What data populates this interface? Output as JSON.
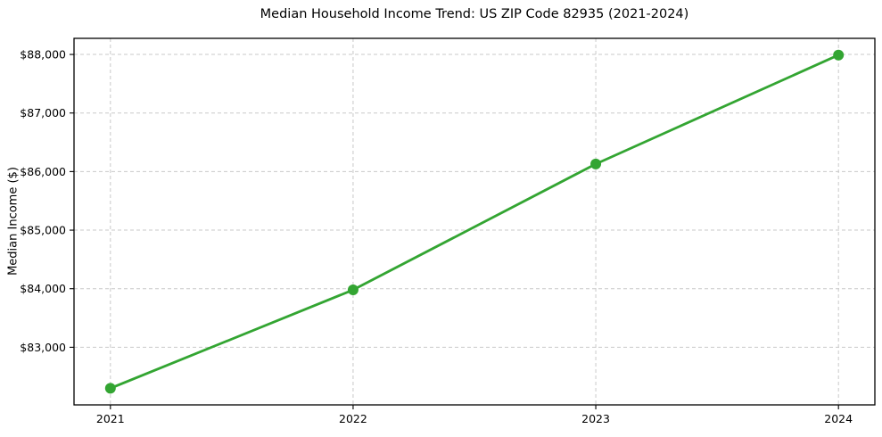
{
  "chart_data": {
    "type": "line",
    "title": "Median Household Income Trend: US ZIP Code 82935 (2021-2024)",
    "xlabel": "",
    "ylabel": "Median Income ($)",
    "x": [
      2021,
      2022,
      2023,
      2024
    ],
    "x_tick_labels": [
      "2021",
      "2022",
      "2023",
      "2024"
    ],
    "y_ticks": [
      83000,
      84000,
      85000,
      86000,
      87000,
      88000
    ],
    "y_tick_labels": [
      "$83,000",
      "$84,000",
      "$85,000",
      "$86,000",
      "$87,000",
      "$88,000"
    ],
    "series": [
      {
        "name": "Median Household Income",
        "values": [
          82300,
          83980,
          86130,
          87990
        ]
      }
    ],
    "xlim": [
      2020.85,
      2024.15
    ],
    "ylim": [
      82016,
      88275
    ],
    "grid": true,
    "grid_style": "dashed",
    "legend": "none",
    "colors": {
      "line": "#33a532",
      "marker": "#33a532",
      "grid": "#c9c9c9",
      "axis": "#000000",
      "background": "#ffffff",
      "text": "#000000"
    }
  }
}
